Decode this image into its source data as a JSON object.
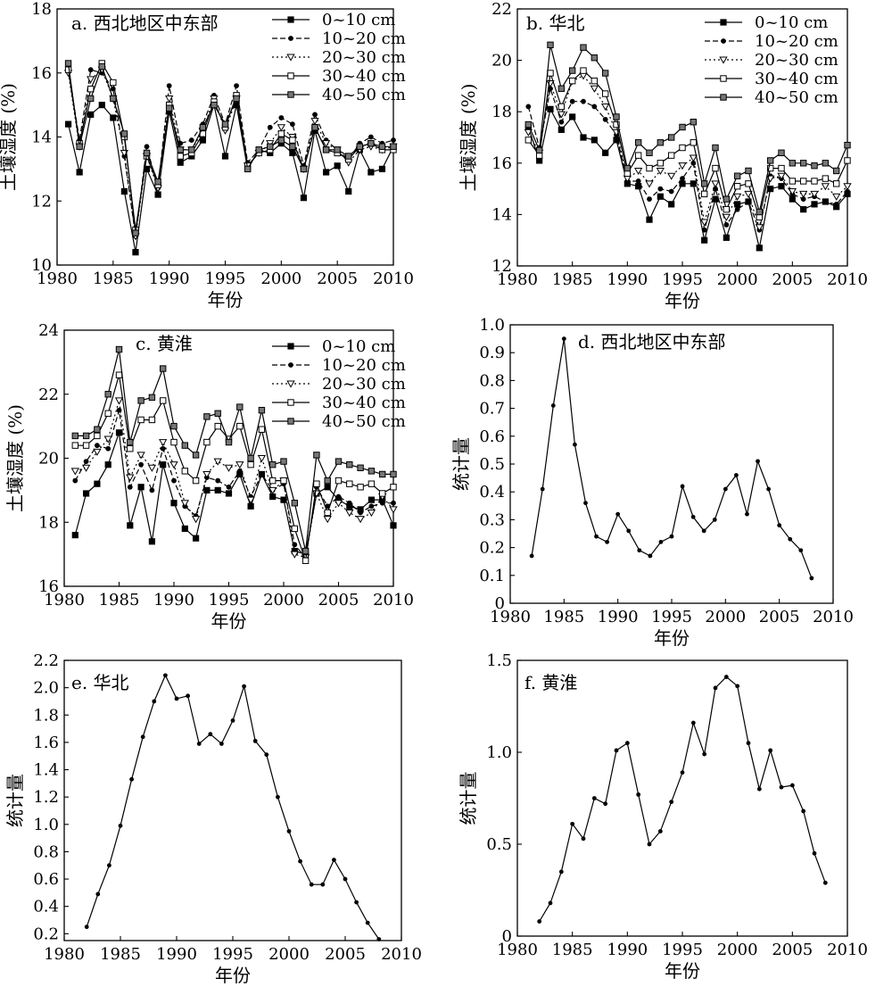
{
  "chart_data": [
    {
      "id": "a",
      "type": "line",
      "title": "a. 西北地区中东部",
      "xlabel": "年份",
      "ylabel": "土壤湿度 (%)",
      "xlim": [
        1980,
        2010
      ],
      "ylim": [
        10,
        18
      ],
      "xticks": [
        1980,
        1985,
        1990,
        1995,
        2000,
        2005,
        2010
      ],
      "yticks": [
        10,
        12,
        14,
        16,
        18
      ],
      "legend": "top-right",
      "x": [
        1981,
        1982,
        1983,
        1984,
        1985,
        1986,
        1987,
        1988,
        1989,
        1990,
        1991,
        1992,
        1993,
        1994,
        1995,
        1996,
        1997,
        1998,
        1999,
        2000,
        2001,
        2002,
        2003,
        2004,
        2005,
        2006,
        2007,
        2008,
        2009,
        2010
      ],
      "series": [
        {
          "name": "0~10 cm",
          "marker": "square-filled",
          "line": "solid",
          "values": [
            14.4,
            12.9,
            14.7,
            15.0,
            14.6,
            12.3,
            10.4,
            13.0,
            12.2,
            14.8,
            13.2,
            13.4,
            13.9,
            15.0,
            13.4,
            15.0,
            13.0,
            13.6,
            13.5,
            13.8,
            13.5,
            12.1,
            14.2,
            12.9,
            13.1,
            12.3,
            13.6,
            12.9,
            13.0,
            13.7
          ]
        },
        {
          "name": "10~20 cm",
          "marker": "circle-filled",
          "line": "dashed",
          "values": [
            16.1,
            13.9,
            16.1,
            16.0,
            15.5,
            13.4,
            10.9,
            13.7,
            12.4,
            15.6,
            13.8,
            13.9,
            14.4,
            15.3,
            14.4,
            15.6,
            13.2,
            13.6,
            14.3,
            14.6,
            14.4,
            13.1,
            14.7,
            13.9,
            13.6,
            13.3,
            13.8,
            14.0,
            13.8,
            13.9
          ]
        },
        {
          "name": "20~30 cm",
          "marker": "triangle-down-open",
          "line": "dotted",
          "values": [
            16.0,
            13.7,
            15.8,
            16.1,
            15.2,
            13.5,
            10.9,
            13.4,
            12.4,
            15.2,
            13.6,
            13.6,
            14.2,
            15.2,
            14.2,
            15.2,
            13.1,
            13.5,
            13.8,
            14.3,
            14.0,
            13.0,
            14.5,
            13.8,
            13.6,
            13.2,
            13.6,
            13.7,
            13.6,
            13.7
          ]
        },
        {
          "name": "30~40 cm",
          "marker": "square-open",
          "line": "solid",
          "values": [
            16.1,
            13.8,
            15.5,
            16.3,
            15.7,
            14.0,
            11.1,
            13.4,
            12.5,
            15.0,
            13.4,
            13.5,
            14.1,
            15.1,
            14.3,
            15.3,
            13.1,
            13.5,
            13.6,
            14.1,
            13.9,
            13.0,
            14.3,
            13.6,
            13.5,
            13.3,
            13.7,
            13.8,
            13.6,
            13.6
          ]
        },
        {
          "name": "40~50 cm",
          "marker": "square-dotted",
          "line": "solid",
          "values": [
            16.3,
            13.7,
            15.2,
            16.2,
            15.2,
            14.1,
            11.0,
            13.5,
            12.6,
            14.9,
            13.6,
            13.6,
            14.3,
            15.0,
            14.4,
            15.2,
            13.0,
            13.6,
            13.7,
            13.9,
            13.7,
            13.0,
            14.3,
            13.6,
            13.6,
            13.4,
            13.7,
            13.8,
            13.7,
            13.7
          ]
        }
      ]
    },
    {
      "id": "b",
      "type": "line",
      "title": "b. 华北",
      "xlabel": "年份",
      "ylabel": "土壤湿度 (%)",
      "xlim": [
        1980,
        2010
      ],
      "ylim": [
        12,
        22
      ],
      "xticks": [
        1980,
        1985,
        1990,
        1995,
        2000,
        2005,
        2010
      ],
      "yticks": [
        12,
        14,
        16,
        18,
        20,
        22
      ],
      "legend": "top-right",
      "x": [
        1981,
        1982,
        1983,
        1984,
        1985,
        1986,
        1987,
        1988,
        1989,
        1990,
        1991,
        1992,
        1993,
        1994,
        1995,
        1996,
        1997,
        1998,
        1999,
        2000,
        2001,
        2002,
        2003,
        2004,
        2005,
        2006,
        2007,
        2008,
        2009,
        2010
      ],
      "series": [
        {
          "name": "0~10 cm",
          "marker": "square-filled",
          "line": "solid",
          "values": [
            17.4,
            16.1,
            18.1,
            17.3,
            17.8,
            17.0,
            16.9,
            16.4,
            16.9,
            15.2,
            15.1,
            13.8,
            14.7,
            14.4,
            15.2,
            15.2,
            13.0,
            14.6,
            13.1,
            14.4,
            14.5,
            12.7,
            15.0,
            15.1,
            14.6,
            14.2,
            14.4,
            14.5,
            14.3,
            14.8
          ]
        },
        {
          "name": "10~20 cm",
          "marker": "circle-filled",
          "line": "dashed",
          "values": [
            18.2,
            16.6,
            18.9,
            17.6,
            18.4,
            18.4,
            18.2,
            17.7,
            17.1,
            15.3,
            15.3,
            14.6,
            15.0,
            14.9,
            15.4,
            16.0,
            13.4,
            15.0,
            13.6,
            14.2,
            14.5,
            13.4,
            15.5,
            15.4,
            14.8,
            14.6,
            14.7,
            14.5,
            14.4,
            14.9
          ]
        },
        {
          "name": "20~30 cm",
          "marker": "triangle-down-open",
          "line": "dotted",
          "values": [
            17.2,
            16.4,
            19.1,
            17.9,
            19.2,
            19.4,
            18.9,
            18.2,
            17.2,
            15.4,
            15.7,
            15.2,
            15.7,
            15.5,
            15.9,
            16.2,
            13.7,
            15.2,
            13.9,
            14.7,
            14.8,
            13.5,
            15.4,
            15.5,
            14.9,
            14.8,
            14.8,
            15.1,
            14.7,
            15.1
          ]
        },
        {
          "name": "30~40 cm",
          "marker": "square-open",
          "line": "solid",
          "values": [
            16.9,
            16.3,
            19.5,
            18.2,
            19.2,
            19.6,
            19.2,
            18.7,
            17.5,
            15.6,
            16.3,
            15.8,
            16.0,
            16.3,
            16.6,
            16.8,
            14.8,
            15.8,
            14.2,
            15.1,
            15.2,
            13.9,
            15.8,
            15.8,
            15.3,
            15.3,
            15.3,
            15.4,
            15.2,
            16.1
          ]
        },
        {
          "name": "40~50 cm",
          "marker": "square-dotted",
          "line": "solid",
          "values": [
            17.5,
            16.5,
            20.6,
            18.9,
            19.6,
            20.5,
            20.1,
            19.5,
            17.8,
            15.8,
            16.8,
            16.4,
            16.8,
            17.0,
            17.4,
            17.6,
            15.2,
            16.6,
            14.6,
            15.5,
            15.7,
            14.1,
            16.1,
            16.4,
            16.0,
            16.0,
            15.9,
            16.0,
            15.7,
            16.7
          ]
        }
      ]
    },
    {
      "id": "c",
      "type": "line",
      "title": "c. 黄淮",
      "xlabel": "年份",
      "ylabel": "土壤湿度 (%)",
      "xlim": [
        1980,
        2010
      ],
      "ylim": [
        16,
        24
      ],
      "xticks": [
        1980,
        1985,
        1990,
        1995,
        2000,
        2005,
        2010
      ],
      "yticks": [
        16,
        18,
        20,
        22,
        24
      ],
      "legend": "top-right",
      "x": [
        1981,
        1982,
        1983,
        1984,
        1985,
        1986,
        1987,
        1988,
        1989,
        1990,
        1991,
        1992,
        1993,
        1994,
        1995,
        1996,
        1997,
        1998,
        1999,
        2000,
        2001,
        2002,
        2003,
        2004,
        2005,
        2006,
        2007,
        2008,
        2009,
        2010
      ],
      "series": [
        {
          "name": "0~10 cm",
          "marker": "square-filled",
          "line": "solid",
          "values": [
            17.6,
            18.9,
            19.2,
            19.8,
            20.8,
            17.9,
            19.1,
            17.4,
            19.8,
            18.6,
            17.8,
            17.5,
            19.0,
            19.0,
            18.9,
            19.5,
            18.5,
            19.5,
            18.8,
            18.7,
            17.1,
            17.0,
            18.9,
            19.1,
            18.7,
            18.5,
            18.4,
            18.7,
            18.7,
            17.9
          ]
        },
        {
          "name": "10~20 cm",
          "marker": "circle-filled",
          "line": "dashed",
          "values": [
            19.3,
            19.9,
            20.4,
            20.3,
            21.5,
            19.1,
            19.8,
            19.0,
            20.3,
            19.3,
            18.5,
            18.2,
            19.4,
            19.3,
            19.1,
            19.6,
            18.8,
            19.5,
            19.0,
            19.2,
            17.3,
            16.9,
            19.1,
            18.5,
            18.8,
            18.6,
            18.3,
            18.5,
            18.6,
            18.6
          ]
        },
        {
          "name": "20~30 cm",
          "marker": "triangle-down-open",
          "line": "dotted",
          "values": [
            19.6,
            19.7,
            20.2,
            20.6,
            21.8,
            19.4,
            20.1,
            19.7,
            20.5,
            19.8,
            18.6,
            18.1,
            19.5,
            19.9,
            19.7,
            19.8,
            18.7,
            20.0,
            19.0,
            19.3,
            17.0,
            16.9,
            18.9,
            18.1,
            18.6,
            18.3,
            18.1,
            18.3,
            18.8,
            18.4
          ]
        },
        {
          "name": "30~40 cm",
          "marker": "square-open",
          "line": "solid",
          "values": [
            20.4,
            20.4,
            20.7,
            21.4,
            22.6,
            20.3,
            21.2,
            21.2,
            21.8,
            20.5,
            19.6,
            19.3,
            20.5,
            21.0,
            20.6,
            21.0,
            19.8,
            20.9,
            19.3,
            19.3,
            17.8,
            16.8,
            19.2,
            18.3,
            19.3,
            19.2,
            19.1,
            19.2,
            18.9,
            19.1
          ]
        },
        {
          "name": "40~50 cm",
          "marker": "square-dotted",
          "line": "solid",
          "values": [
            20.7,
            20.7,
            20.9,
            22.0,
            23.4,
            20.5,
            21.8,
            21.9,
            22.8,
            21.0,
            20.4,
            20.1,
            21.3,
            21.4,
            20.5,
            21.6,
            20.0,
            21.5,
            19.8,
            19.9,
            18.6,
            17.1,
            20.1,
            19.3,
            19.9,
            19.8,
            19.7,
            19.6,
            19.5,
            19.5
          ]
        }
      ]
    },
    {
      "id": "d",
      "type": "line",
      "title": "d. 西北地区中东部",
      "xlabel": "年份",
      "ylabel": "统计量",
      "xlim": [
        1980,
        2010
      ],
      "ylim": [
        0,
        1.0
      ],
      "xticks": [
        1980,
        1985,
        1990,
        1995,
        2000,
        2005,
        2010
      ],
      "yticks": [
        0,
        0.1,
        0.2,
        0.3,
        0.4,
        0.5,
        0.6,
        0.7,
        0.8,
        0.9,
        1.0
      ],
      "ytick_labels": [
        "0",
        "0.1",
        "0.2",
        "0.3",
        "0.4",
        "0.5",
        "0.6",
        "0.7",
        "0.8",
        "0.9",
        "1.0"
      ],
      "x": [
        1982,
        1983,
        1984,
        1985,
        1986,
        1987,
        1988,
        1989,
        1990,
        1991,
        1992,
        1993,
        1994,
        1995,
        1996,
        1997,
        1998,
        1999,
        2000,
        2001,
        2002,
        2003,
        2004,
        2005,
        2006,
        2007,
        2008
      ],
      "series": [
        {
          "marker": "dot",
          "line": "solid",
          "values": [
            0.17,
            0.41,
            0.71,
            0.95,
            0.57,
            0.36,
            0.24,
            0.22,
            0.32,
            0.26,
            0.19,
            0.17,
            0.22,
            0.24,
            0.42,
            0.31,
            0.26,
            0.3,
            0.41,
            0.46,
            0.32,
            0.51,
            0.41,
            0.28,
            0.23,
            0.19,
            0.09
          ]
        }
      ]
    },
    {
      "id": "e",
      "type": "line",
      "title": "e. 华北",
      "xlabel": "年份",
      "ylabel": "统计量",
      "xlim": [
        1980,
        2010
      ],
      "ylim": [
        0.15,
        2.2
      ],
      "xticks": [
        1980,
        1985,
        1990,
        1995,
        2000,
        2005,
        2010
      ],
      "yticks": [
        0.2,
        0.4,
        0.6,
        0.8,
        1.0,
        1.2,
        1.4,
        1.6,
        1.8,
        2.0,
        2.2
      ],
      "ytick_labels": [
        "0.2",
        "0.4",
        "0.6",
        "0.8",
        "1.0",
        "1.2",
        "1.4",
        "1.6",
        "1.8",
        "2.0",
        "2.2"
      ],
      "x": [
        1982,
        1983,
        1984,
        1985,
        1986,
        1987,
        1988,
        1989,
        1990,
        1991,
        1992,
        1993,
        1994,
        1995,
        1996,
        1997,
        1998,
        1999,
        2000,
        2001,
        2002,
        2003,
        2004,
        2005,
        2006,
        2007,
        2008
      ],
      "series": [
        {
          "marker": "dot",
          "line": "solid",
          "values": [
            0.25,
            0.49,
            0.7,
            0.99,
            1.33,
            1.64,
            1.9,
            2.09,
            1.92,
            1.94,
            1.59,
            1.66,
            1.59,
            1.76,
            2.01,
            1.61,
            1.51,
            1.2,
            0.95,
            0.73,
            0.56,
            0.56,
            0.74,
            0.6,
            0.43,
            0.28,
            0.16
          ]
        }
      ]
    },
    {
      "id": "f",
      "type": "line",
      "title": "f. 黄淮",
      "xlabel": "年份",
      "ylabel": "统计量",
      "xlim": [
        1980,
        2010
      ],
      "ylim": [
        0,
        1.5
      ],
      "xticks": [
        1980,
        1985,
        1990,
        1995,
        2000,
        2005,
        2010
      ],
      "yticks": [
        0,
        0.5,
        1.0,
        1.5
      ],
      "ytick_labels": [
        "0",
        "0.5",
        "1.0",
        "1.5"
      ],
      "x": [
        1982,
        1983,
        1984,
        1985,
        1986,
        1987,
        1988,
        1989,
        1990,
        1991,
        1992,
        1993,
        1994,
        1995,
        1996,
        1997,
        1998,
        1999,
        2000,
        2001,
        2002,
        2003,
        2004,
        2005,
        2006,
        2007,
        2008
      ],
      "series": [
        {
          "marker": "dot",
          "line": "solid",
          "values": [
            0.08,
            0.18,
            0.35,
            0.61,
            0.53,
            0.75,
            0.72,
            1.01,
            1.05,
            0.77,
            0.5,
            0.57,
            0.73,
            0.89,
            1.16,
            0.99,
            1.35,
            1.41,
            1.36,
            1.05,
            0.8,
            1.01,
            0.81,
            0.82,
            0.68,
            0.45,
            0.29
          ]
        }
      ]
    }
  ]
}
